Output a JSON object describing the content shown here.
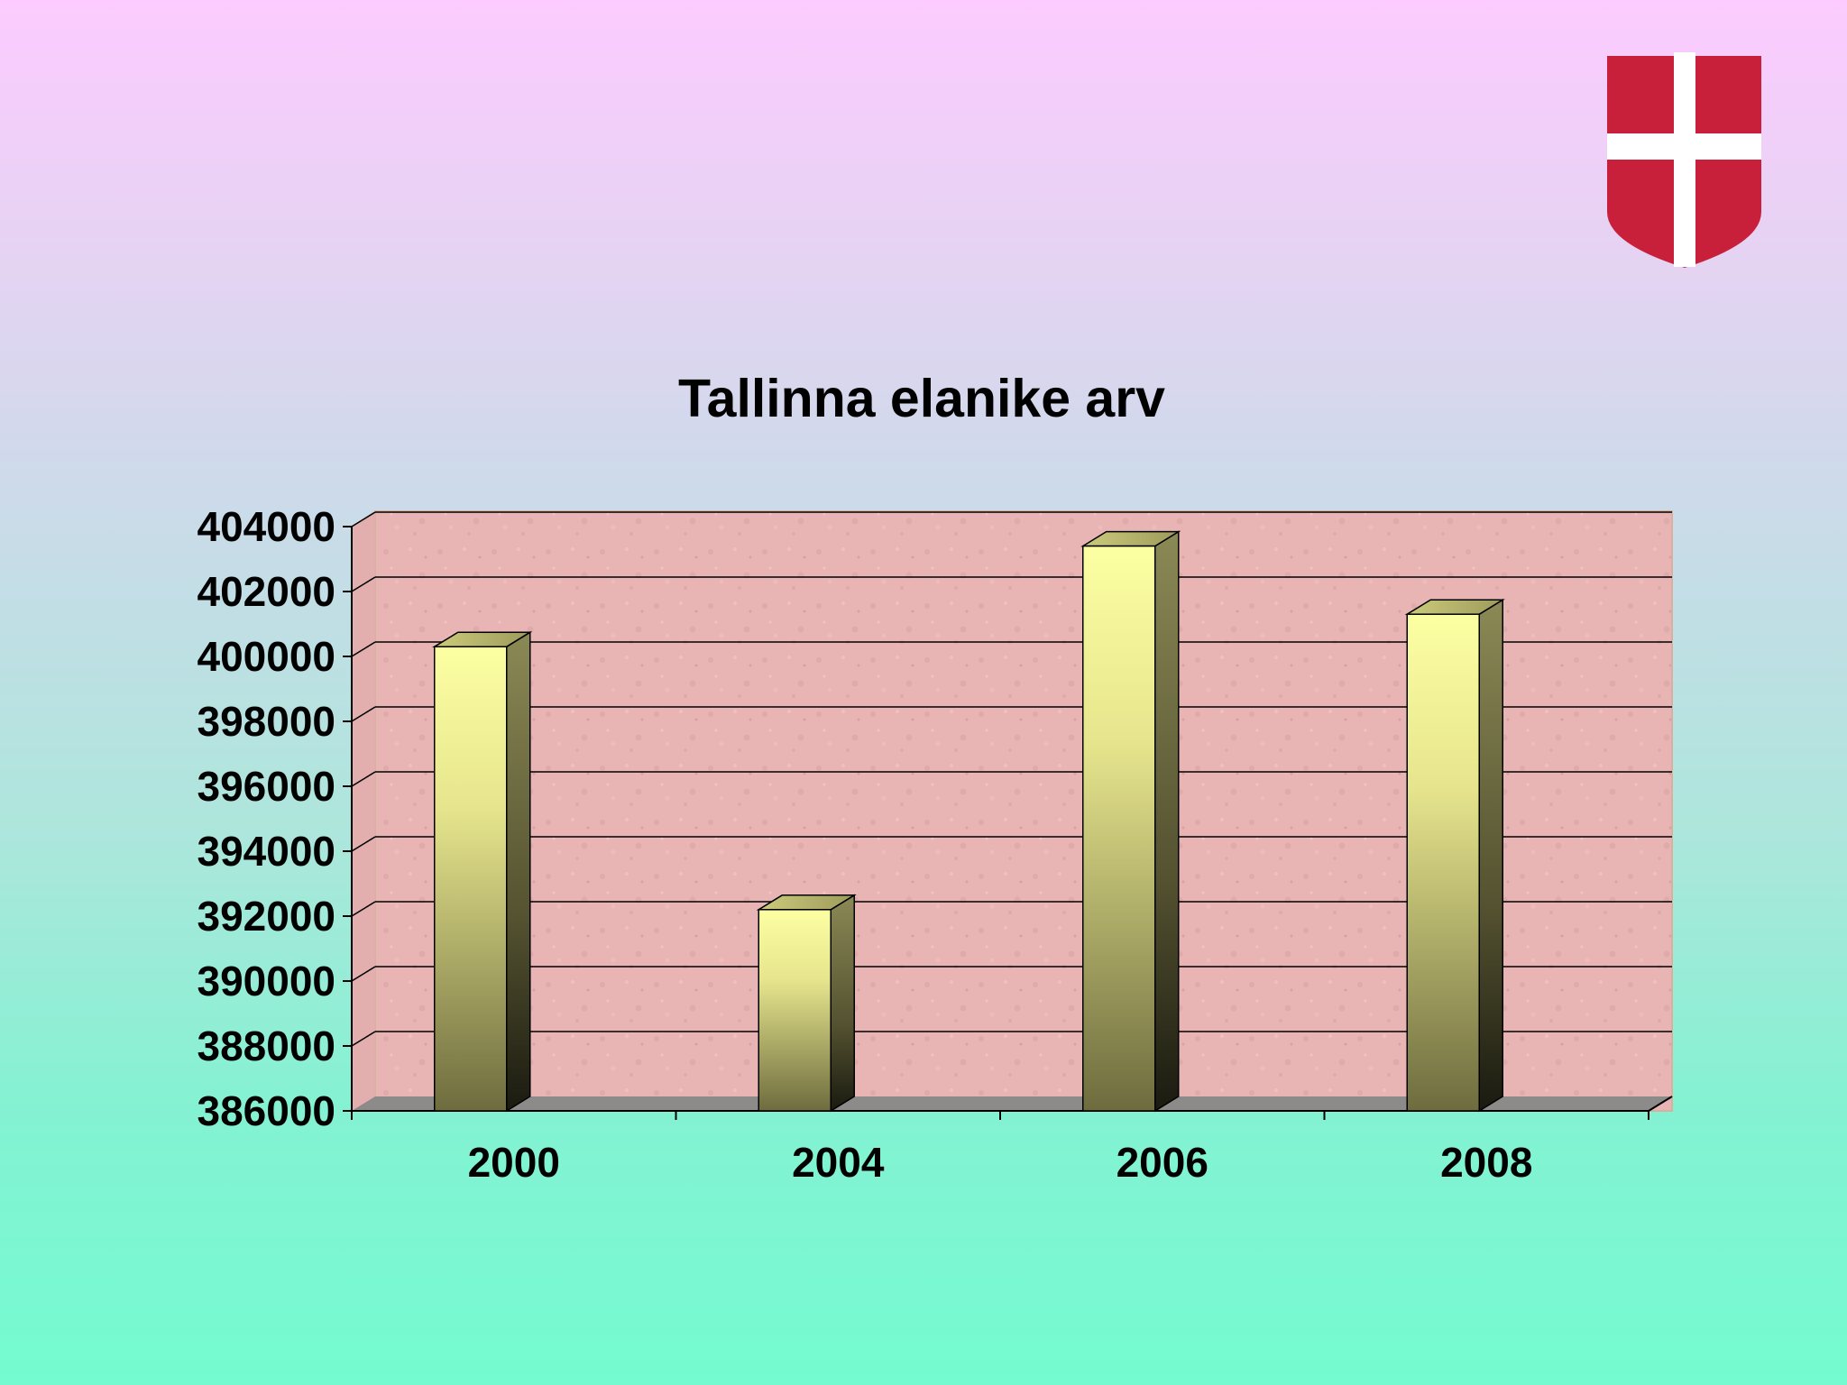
{
  "chart_data": {
    "type": "bar",
    "title": "Tallinna elanike arv",
    "categories": [
      "2000",
      "2004",
      "2006",
      "2008"
    ],
    "values": [
      400300,
      392200,
      403400,
      401300
    ],
    "ylim": [
      386000,
      404000
    ],
    "yticks": [
      "386000",
      "388000",
      "390000",
      "392000",
      "394000",
      "396000",
      "398000",
      "400000",
      "402000",
      "404000"
    ],
    "xlabel": "",
    "ylabel": "",
    "grid": true,
    "legend": "none",
    "style": "3d-column"
  },
  "colors": {
    "plot_background": "#e8b4b4",
    "bar_front_top": "#fdffa3",
    "bar_front_bottom": "#6e6c3e",
    "bar_side": "#4a482a",
    "floor": "#8d8a8a",
    "shield_red": "#c8203a",
    "shield_cross": "#ffffff"
  },
  "logo": {
    "icon": "shield-cross-icon"
  }
}
